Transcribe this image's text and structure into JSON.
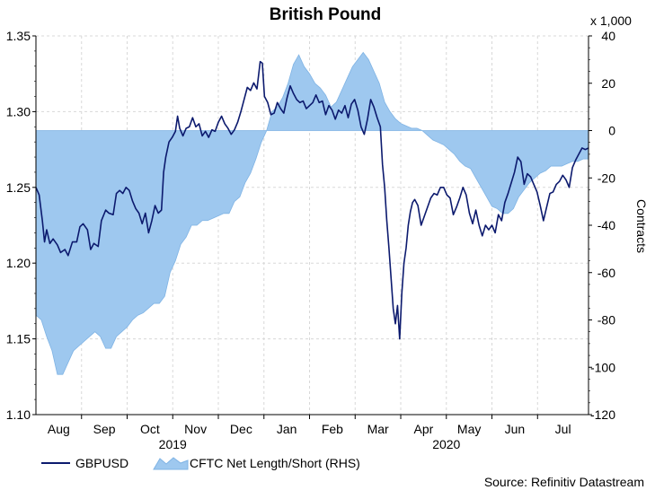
{
  "chart_data": {
    "type": "line",
    "title": "British Pound",
    "multiplier_label": "x 1,000",
    "right_axis_label": "Contracts",
    "source": "Source: Refinitiv Datastream",
    "y_left": {
      "min": 1.1,
      "max": 1.35,
      "ticks": [
        "1.10",
        "1.15",
        "1.20",
        "1.25",
        "1.30",
        "1.35"
      ]
    },
    "y_right": {
      "min": -120,
      "max": 40,
      "ticks": [
        "40",
        "20",
        "0",
        "-20",
        "-40",
        "-60",
        "-80",
        "-100",
        "-120"
      ]
    },
    "x_months": [
      "Aug",
      "Sep",
      "Oct",
      "Nov",
      "Dec",
      "Jan",
      "Feb",
      "Mar",
      "Apr",
      "May",
      "Jun",
      "Jul"
    ],
    "x_years": [
      "2019",
      "2020"
    ],
    "legend": {
      "line": "GBPUSD",
      "area": "CFTC Net Length/Short (RHS)"
    },
    "colors": {
      "line": "#0c1a6e",
      "area": "#9ec8ef",
      "area_edge": "#7fb3e4"
    },
    "series": [
      {
        "name": "GBPUSD",
        "axis": "left",
        "points": [
          [
            0,
            1.25
          ],
          [
            0.6,
            1.245
          ],
          [
            1.2,
            1.228
          ],
          [
            1.6,
            1.214
          ],
          [
            2,
            1.222
          ],
          [
            2.6,
            1.213
          ],
          [
            3.2,
            1.216
          ],
          [
            4,
            1.212
          ],
          [
            4.6,
            1.207
          ],
          [
            5.4,
            1.209
          ],
          [
            6,
            1.205
          ],
          [
            6.8,
            1.214
          ],
          [
            7.6,
            1.214
          ],
          [
            8.2,
            1.224
          ],
          [
            8.8,
            1.226
          ],
          [
            9.6,
            1.222
          ],
          [
            10.2,
            1.209
          ],
          [
            10.8,
            1.213
          ],
          [
            11.6,
            1.211
          ],
          [
            12.2,
            1.228
          ],
          [
            13,
            1.235
          ],
          [
            13.6,
            1.233
          ],
          [
            14.4,
            1.232
          ],
          [
            15,
            1.246
          ],
          [
            15.6,
            1.248
          ],
          [
            16.2,
            1.246
          ],
          [
            16.8,
            1.25
          ],
          [
            17.4,
            1.248
          ],
          [
            18,
            1.241
          ],
          [
            18.6,
            1.236
          ],
          [
            19.2,
            1.233
          ],
          [
            19.8,
            1.226
          ],
          [
            20.4,
            1.233
          ],
          [
            21,
            1.22
          ],
          [
            21.6,
            1.228
          ],
          [
            22.2,
            1.238
          ],
          [
            22.8,
            1.233
          ],
          [
            23.4,
            1.235
          ],
          [
            23.8,
            1.26
          ],
          [
            24.2,
            1.27
          ],
          [
            24.8,
            1.28
          ],
          [
            25.4,
            1.283
          ],
          [
            26,
            1.287
          ],
          [
            26.4,
            1.297
          ],
          [
            26.8,
            1.289
          ],
          [
            27.4,
            1.284
          ],
          [
            28,
            1.289
          ],
          [
            28.6,
            1.29
          ],
          [
            29.2,
            1.296
          ],
          [
            29.8,
            1.29
          ],
          [
            30.4,
            1.292
          ],
          [
            31,
            1.284
          ],
          [
            31.6,
            1.287
          ],
          [
            32.2,
            1.283
          ],
          [
            32.8,
            1.288
          ],
          [
            33.4,
            1.287
          ],
          [
            34,
            1.293
          ],
          [
            34.6,
            1.297
          ],
          [
            35.2,
            1.292
          ],
          [
            35.8,
            1.289
          ],
          [
            36.4,
            1.285
          ],
          [
            37,
            1.288
          ],
          [
            37.6,
            1.293
          ],
          [
            38.2,
            1.3
          ],
          [
            38.8,
            1.308
          ],
          [
            39.4,
            1.316
          ],
          [
            40,
            1.314
          ],
          [
            40.6,
            1.319
          ],
          [
            41.2,
            1.315
          ],
          [
            41.8,
            1.333
          ],
          [
            42.2,
            1.332
          ],
          [
            42.6,
            1.31
          ],
          [
            43.2,
            1.306
          ],
          [
            43.8,
            1.298
          ],
          [
            44.4,
            1.299
          ],
          [
            45,
            1.306
          ],
          [
            45.6,
            1.302
          ],
          [
            46.2,
            1.299
          ],
          [
            46.8,
            1.309
          ],
          [
            47.4,
            1.317
          ],
          [
            48,
            1.312
          ],
          [
            48.6,
            1.308
          ],
          [
            49.2,
            1.306
          ],
          [
            49.8,
            1.307
          ],
          [
            50.4,
            1.302
          ],
          [
            51,
            1.304
          ],
          [
            51.6,
            1.306
          ],
          [
            52.2,
            1.311
          ],
          [
            52.8,
            1.306
          ],
          [
            53.4,
            1.307
          ],
          [
            54,
            1.298
          ],
          [
            54.6,
            1.304
          ],
          [
            55.2,
            1.301
          ],
          [
            55.8,
            1.295
          ],
          [
            56.4,
            1.301
          ],
          [
            57,
            1.299
          ],
          [
            57.6,
            1.304
          ],
          [
            58.2,
            1.296
          ],
          [
            58.8,
            1.305
          ],
          [
            59.4,
            1.308
          ],
          [
            60,
            1.301
          ],
          [
            60.6,
            1.29
          ],
          [
            61.2,
            1.285
          ],
          [
            61.8,
            1.295
          ],
          [
            62.4,
            1.308
          ],
          [
            63,
            1.303
          ],
          [
            63.6,
            1.296
          ],
          [
            64.2,
            1.29
          ],
          [
            64.6,
            1.265
          ],
          [
            65,
            1.25
          ],
          [
            65.4,
            1.228
          ],
          [
            65.8,
            1.21
          ],
          [
            66.2,
            1.19
          ],
          [
            66.6,
            1.17
          ],
          [
            67,
            1.16
          ],
          [
            67.4,
            1.172
          ],
          [
            67.8,
            1.15
          ],
          [
            68.2,
            1.18
          ],
          [
            68.6,
            1.2
          ],
          [
            69,
            1.21
          ],
          [
            69.4,
            1.225
          ],
          [
            69.8,
            1.234
          ],
          [
            70.2,
            1.24
          ],
          [
            70.6,
            1.242
          ],
          [
            71.2,
            1.238
          ],
          [
            71.8,
            1.225
          ],
          [
            72.4,
            1.231
          ],
          [
            73,
            1.237
          ],
          [
            73.6,
            1.243
          ],
          [
            74.2,
            1.246
          ],
          [
            74.8,
            1.245
          ],
          [
            75.4,
            1.25
          ],
          [
            76,
            1.25
          ],
          [
            76.6,
            1.245
          ],
          [
            77.2,
            1.243
          ],
          [
            77.8,
            1.232
          ],
          [
            78.4,
            1.237
          ],
          [
            79,
            1.243
          ],
          [
            79.6,
            1.25
          ],
          [
            80.2,
            1.245
          ],
          [
            80.8,
            1.233
          ],
          [
            81.4,
            1.226
          ],
          [
            82,
            1.235
          ],
          [
            82.6,
            1.225
          ],
          [
            83.2,
            1.218
          ],
          [
            83.8,
            1.225
          ],
          [
            84.4,
            1.222
          ],
          [
            85,
            1.225
          ],
          [
            85.6,
            1.22
          ],
          [
            86.2,
            1.232
          ],
          [
            86.8,
            1.228
          ],
          [
            87.4,
            1.24
          ],
          [
            88,
            1.246
          ],
          [
            88.6,
            1.253
          ],
          [
            89.2,
            1.26
          ],
          [
            89.8,
            1.27
          ],
          [
            90.4,
            1.267
          ],
          [
            91,
            1.252
          ],
          [
            91.6,
            1.259
          ],
          [
            92.2,
            1.257
          ],
          [
            92.8,
            1.252
          ],
          [
            93.4,
            1.247
          ],
          [
            94,
            1.238
          ],
          [
            94.6,
            1.228
          ],
          [
            95.2,
            1.237
          ],
          [
            95.8,
            1.246
          ],
          [
            96.4,
            1.247
          ],
          [
            97,
            1.252
          ],
          [
            97.6,
            1.254
          ],
          [
            98.2,
            1.258
          ],
          [
            98.8,
            1.255
          ],
          [
            99.4,
            1.25
          ],
          [
            100,
            1.263
          ],
          [
            100.6,
            1.268
          ],
          [
            101.2,
            1.272
          ],
          [
            101.8,
            1.276
          ],
          [
            102.4,
            1.275
          ],
          [
            103,
            1.276
          ]
        ]
      },
      {
        "name": "CFTC Net Length/Short (RHS)",
        "axis": "right",
        "type": "area",
        "points": [
          [
            0,
            -78
          ],
          [
            1,
            -80
          ],
          [
            2,
            -87
          ],
          [
            3,
            -93
          ],
          [
            4,
            -103
          ],
          [
            5,
            -103
          ],
          [
            6,
            -98
          ],
          [
            7,
            -93
          ],
          [
            8,
            -91
          ],
          [
            9,
            -89
          ],
          [
            10,
            -87
          ],
          [
            11,
            -85
          ],
          [
            12,
            -87
          ],
          [
            13,
            -92
          ],
          [
            14,
            -92
          ],
          [
            15,
            -87
          ],
          [
            16,
            -85
          ],
          [
            17,
            -83
          ],
          [
            18,
            -80
          ],
          [
            19,
            -78
          ],
          [
            20,
            -77
          ],
          [
            21,
            -75
          ],
          [
            22,
            -73
          ],
          [
            23,
            -73
          ],
          [
            24,
            -70
          ],
          [
            25,
            -60
          ],
          [
            26,
            -55
          ],
          [
            27,
            -48
          ],
          [
            28,
            -45
          ],
          [
            29,
            -40
          ],
          [
            30,
            -40
          ],
          [
            31,
            -38
          ],
          [
            32,
            -38
          ],
          [
            33,
            -37
          ],
          [
            34,
            -36
          ],
          [
            35,
            -35
          ],
          [
            36,
            -35
          ],
          [
            37,
            -30
          ],
          [
            38,
            -28
          ],
          [
            39,
            -22
          ],
          [
            40,
            -18
          ],
          [
            41,
            -12
          ],
          [
            42,
            -5
          ],
          [
            43,
            0
          ],
          [
            44,
            8
          ],
          [
            45,
            10
          ],
          [
            46,
            14
          ],
          [
            47,
            20
          ],
          [
            48,
            28
          ],
          [
            49,
            32
          ],
          [
            50,
            27
          ],
          [
            51,
            24
          ],
          [
            52,
            20
          ],
          [
            53,
            18
          ],
          [
            54,
            15
          ],
          [
            55,
            10
          ],
          [
            56,
            12
          ],
          [
            57,
            17
          ],
          [
            58,
            22
          ],
          [
            59,
            27
          ],
          [
            60,
            30
          ],
          [
            61,
            33
          ],
          [
            62,
            30
          ],
          [
            63,
            25
          ],
          [
            64,
            20
          ],
          [
            65,
            12
          ],
          [
            66,
            8
          ],
          [
            67,
            5
          ],
          [
            68,
            3
          ],
          [
            69,
            2
          ],
          [
            70,
            1
          ],
          [
            71,
            1
          ],
          [
            72,
            0
          ],
          [
            73,
            -2
          ],
          [
            74,
            -4
          ],
          [
            75,
            -5
          ],
          [
            76,
            -6
          ],
          [
            77,
            -8
          ],
          [
            78,
            -10
          ],
          [
            79,
            -13
          ],
          [
            80,
            -15
          ],
          [
            81,
            -16
          ],
          [
            82,
            -20
          ],
          [
            83,
            -24
          ],
          [
            84,
            -28
          ],
          [
            85,
            -32
          ],
          [
            86,
            -33
          ],
          [
            87,
            -35
          ],
          [
            88,
            -35
          ],
          [
            89,
            -33
          ],
          [
            90,
            -28
          ],
          [
            91,
            -25
          ],
          [
            92,
            -22
          ],
          [
            93,
            -20
          ],
          [
            94,
            -18
          ],
          [
            95,
            -17
          ],
          [
            96,
            -15
          ],
          [
            97,
            -15
          ],
          [
            98,
            -15
          ],
          [
            99,
            -14
          ],
          [
            100,
            -13
          ],
          [
            101,
            -13
          ],
          [
            102,
            -12
          ],
          [
            103,
            -12
          ]
        ]
      }
    ],
    "grid": true,
    "legend_position": "bottom-left"
  }
}
